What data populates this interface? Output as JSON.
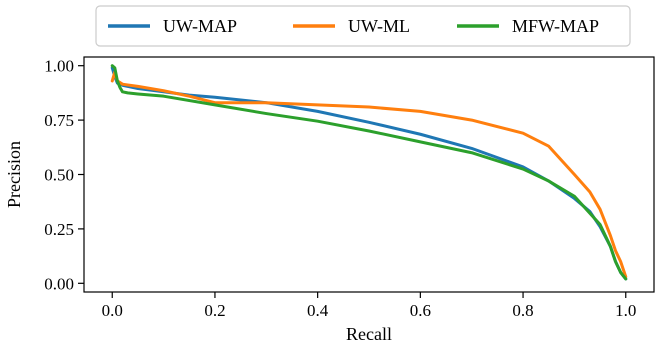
{
  "chart_data": {
    "type": "line",
    "xlabel": "Recall",
    "ylabel": "Precision",
    "xlim": [
      -0.055,
      1.055
    ],
    "ylim": [
      -0.04,
      1.04
    ],
    "x_ticks": [
      0.0,
      0.2,
      0.4,
      0.6,
      0.8,
      1.0
    ],
    "y_ticks": [
      0.0,
      0.25,
      0.5,
      0.75,
      1.0
    ],
    "x_tick_labels": [
      "0.0",
      "0.2",
      "0.4",
      "0.6",
      "0.8",
      "1.0"
    ],
    "y_tick_labels": [
      "0.00",
      "0.25",
      "0.50",
      "0.75",
      "1.00"
    ],
    "grid": false,
    "legend_position": "top-center-outside",
    "series": [
      {
        "name": "UW-MAP",
        "color": "#1f77b4",
        "x": [
          0.0,
          0.005,
          0.01,
          0.02,
          0.05,
          0.1,
          0.15,
          0.2,
          0.3,
          0.4,
          0.5,
          0.6,
          0.7,
          0.8,
          0.85,
          0.9,
          0.93,
          0.95,
          0.97,
          0.98,
          0.99,
          1.0
        ],
        "y": [
          0.99,
          0.95,
          0.92,
          0.91,
          0.895,
          0.88,
          0.865,
          0.855,
          0.83,
          0.79,
          0.74,
          0.685,
          0.62,
          0.535,
          0.47,
          0.39,
          0.33,
          0.26,
          0.17,
          0.1,
          0.05,
          0.02
        ]
      },
      {
        "name": "UW-ML",
        "color": "#ff7f0e",
        "x": [
          0.0,
          0.005,
          0.01,
          0.02,
          0.05,
          0.1,
          0.15,
          0.2,
          0.25,
          0.3,
          0.4,
          0.5,
          0.6,
          0.7,
          0.8,
          0.85,
          0.9,
          0.93,
          0.95,
          0.97,
          0.98,
          0.99,
          1.0
        ],
        "y": [
          0.93,
          0.97,
          0.93,
          0.915,
          0.905,
          0.885,
          0.86,
          0.83,
          0.83,
          0.83,
          0.82,
          0.81,
          0.79,
          0.75,
          0.69,
          0.63,
          0.5,
          0.42,
          0.34,
          0.22,
          0.15,
          0.1,
          0.03
        ]
      },
      {
        "name": "MFW-MAP",
        "color": "#2ca02c",
        "x": [
          0.0,
          0.005,
          0.01,
          0.015,
          0.02,
          0.03,
          0.05,
          0.1,
          0.2,
          0.3,
          0.4,
          0.5,
          0.6,
          0.7,
          0.8,
          0.85,
          0.9,
          0.95,
          0.97,
          0.98,
          0.99,
          1.0
        ],
        "y": [
          1.0,
          0.99,
          0.93,
          0.9,
          0.88,
          0.875,
          0.87,
          0.86,
          0.82,
          0.78,
          0.745,
          0.7,
          0.65,
          0.6,
          0.525,
          0.47,
          0.4,
          0.27,
          0.17,
          0.1,
          0.05,
          0.02
        ]
      }
    ]
  }
}
